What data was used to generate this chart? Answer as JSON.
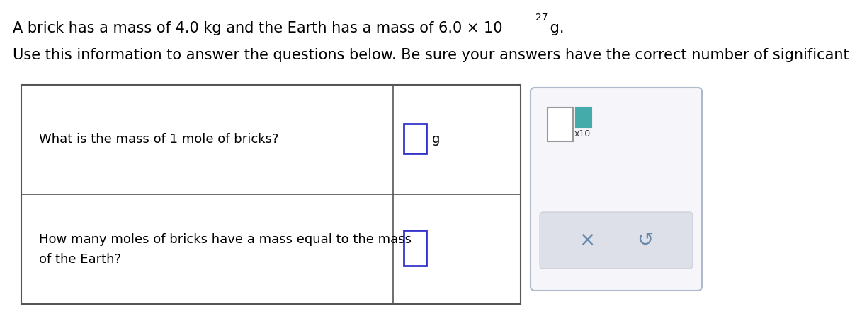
{
  "title_line1": "A brick has a mass of 4.0 kg and the Earth has a mass of 6.0 × 10",
  "title_line1_exp": "27",
  "title_line1_suffix": " g.",
  "title_line2": "Use this information to answer the questions below. Be sure your answers have the correct number of significant digits.",
  "q1_text": "What is the mass of 1 mole of bricks?",
  "q1_unit": "g",
  "q2_text_line1": "How many moles of bricks have a mass equal to the mass",
  "q2_text_line2": "of the Earth?",
  "bg_color": "#ffffff",
  "table_border_color": "#555555",
  "input_box_color": "#3333cc",
  "input_box_fill": "#ffffff",
  "side_panel_border": "#aaaacc",
  "side_panel_fill": "#f5f5fa",
  "side_panel_button_fill": "#dde0e8",
  "x10_box_color": "#999999",
  "x10_teal_color": "#44aaaa",
  "btn_text_color": "#6688aa",
  "font_size_title": 15,
  "font_size_body": 13,
  "font_size_small": 11
}
